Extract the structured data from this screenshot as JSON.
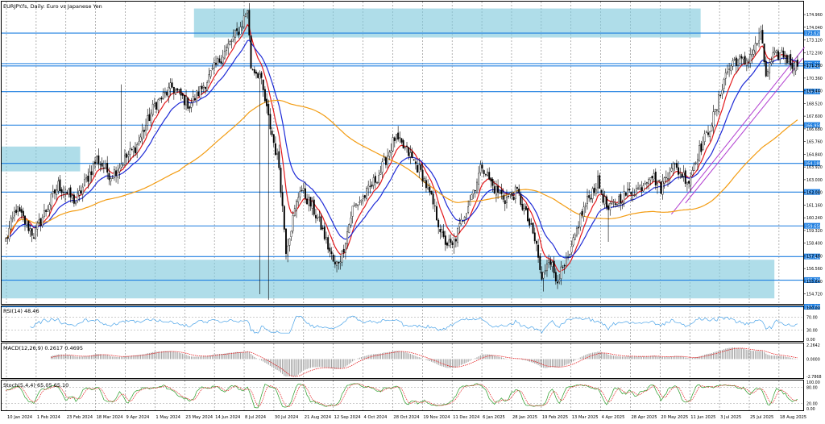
{
  "symbol_title": "EURJPY.fs, Daily: Euro vs Japanese Yen",
  "colors": {
    "bull_candle": "#000000",
    "bear_candle": "#000000",
    "ema_fast": "#e31a1c",
    "ema_mid": "#1f2bd6",
    "sma_slow": "#f39c12",
    "hline": "#1f7fe0",
    "zone": "#7ec8dc",
    "trend": "#b23fd0",
    "rsi": "#4aa3e8",
    "macd_signal": "#e31a1c",
    "stoch_k": "#2a9d2a",
    "stoch_d": "#e31a1c",
    "label_bg": "#1f7fe0",
    "grid": "#808080"
  },
  "chart_data": [
    {
      "type": "candlestick",
      "name": "main",
      "title": "EURJPY.fs, Daily: Euro vs Japanese Yen",
      "ylim": [
        154.0,
        175.9
      ],
      "y_ticks": [
        "175.880",
        "174.960",
        "174.040",
        "173.120",
        "172.200",
        "171.280",
        "170.360",
        "169.440",
        "168.520",
        "167.600",
        "166.680",
        "165.760",
        "164.840",
        "163.920",
        "163.000",
        "162.080",
        "161.160",
        "160.240",
        "159.320",
        "158.400",
        "157.480",
        "156.560",
        "155.640",
        "154.720"
      ],
      "x_ticks": [
        "10 Jan 2024",
        "1 Feb 2024",
        "23 Feb 2024",
        "18 Mar 2024",
        "9 Apr 2024",
        "1 May 2024",
        "23 May 2024",
        "14 Jun 2024",
        "8 Jul 2024",
        "30 Jul 2024",
        "21 Aug 2024",
        "12 Sep 2024",
        "4 Oct 2024",
        "28 Oct 2024",
        "19 Nov 2024",
        "11 Dec 2024",
        "6 Jan 2025",
        "28 Jan 2025",
        "19 Feb 2025",
        "13 Mar 2025",
        "4 Apr 2025",
        "28 Apr 2025",
        "20 May 2025",
        "11 Jun 2025",
        "3 Jul 2025",
        "25 Jul 2025",
        "18 Aug 2025"
      ],
      "price_keypoints": [
        [
          0,
          158.6
        ],
        [
          6,
          160.9
        ],
        [
          16,
          159.0
        ],
        [
          30,
          162.6
        ],
        [
          40,
          161.4
        ],
        [
          52,
          164.5
        ],
        [
          60,
          163.3
        ],
        [
          75,
          165.5
        ],
        [
          85,
          168.4
        ],
        [
          95,
          169.7
        ],
        [
          105,
          168.4
        ],
        [
          115,
          170.2
        ],
        [
          125,
          172.3
        ],
        [
          134,
          174.0
        ],
        [
          138,
          175.4
        ],
        [
          140,
          171.2
        ],
        [
          145,
          170.6
        ],
        [
          150,
          167.4
        ],
        [
          156,
          164.0
        ],
        [
          160,
          158.0
        ],
        [
          163,
          159.6
        ],
        [
          168,
          162.4
        ],
        [
          175,
          161.0
        ],
        [
          180,
          159.6
        ],
        [
          188,
          156.7
        ],
        [
          192,
          157.6
        ],
        [
          198,
          160.9
        ],
        [
          206,
          162.0
        ],
        [
          214,
          163.6
        ],
        [
          222,
          166.0
        ],
        [
          230,
          164.9
        ],
        [
          238,
          163.3
        ],
        [
          244,
          161.2
        ],
        [
          250,
          158.6
        ],
        [
          255,
          158.1
        ],
        [
          262,
          160.6
        ],
        [
          268,
          162.6
        ],
        [
          272,
          164.1
        ],
        [
          278,
          162.5
        ],
        [
          285,
          161.6
        ],
        [
          292,
          162.1
        ],
        [
          298,
          160.1
        ],
        [
          303,
          158.2
        ],
        [
          306,
          155.6
        ],
        [
          310,
          157.6
        ],
        [
          314,
          155.8
        ],
        [
          318,
          156.4
        ],
        [
          322,
          157.4
        ],
        [
          328,
          160.3
        ],
        [
          334,
          162.0
        ],
        [
          338,
          162.8
        ],
        [
          344,
          160.7
        ],
        [
          350,
          161.6
        ],
        [
          356,
          162.1
        ],
        [
          362,
          162.4
        ],
        [
          368,
          163.5
        ],
        [
          374,
          162.4
        ],
        [
          380,
          164.1
        ],
        [
          386,
          163.4
        ],
        [
          390,
          162.9
        ],
        [
          394,
          164.6
        ],
        [
          400,
          166.2
        ],
        [
          406,
          168.2
        ],
        [
          410,
          170.4
        ],
        [
          416,
          171.7
        ],
        [
          422,
          171.5
        ],
        [
          428,
          172.6
        ],
        [
          431,
          173.4
        ],
        [
          434,
          170.6
        ],
        [
          438,
          171.8
        ],
        [
          443,
          172.2
        ],
        [
          448,
          171.5
        ],
        [
          452,
          171.2
        ]
      ],
      "candle_count": 453,
      "series": [
        {
          "name": "EMA fast",
          "period": 9,
          "kind": "ema"
        },
        {
          "name": "EMA mid",
          "period": 21,
          "kind": "ema"
        },
        {
          "name": "SMA slow",
          "period": 100,
          "kind": "sma"
        }
      ],
      "horizontal_levels": [
        {
          "value": 173.62,
          "label": "173.620"
        },
        {
          "value": 171.41,
          "label": "171.410"
        },
        {
          "value": 171.24,
          "label": "171.240"
        },
        {
          "value": 169.38,
          "label": "169.380"
        },
        {
          "value": 166.95,
          "label": "166.950"
        },
        {
          "value": 164.18,
          "label": "164.180"
        },
        {
          "value": 162.1,
          "label": "162.100"
        },
        {
          "value": 159.65,
          "label": "159.650"
        },
        {
          "value": 157.43,
          "label": "157.430"
        },
        {
          "value": 155.72,
          "label": "155.720"
        },
        {
          "value": 153.79,
          "label": "153.790"
        }
      ],
      "zones": [
        {
          "name": "resistance-zone",
          "x_range": [
            0.24,
            0.872
          ],
          "y_range": [
            173.3,
            175.4
          ]
        },
        {
          "name": "mid-zone",
          "x_range": [
            0.0,
            0.098
          ],
          "y_range": [
            163.6,
            165.4
          ]
        },
        {
          "name": "support-zone",
          "x_range": [
            0.0,
            0.964
          ],
          "y_range": [
            154.4,
            157.2
          ]
        }
      ]
    },
    {
      "type": "line",
      "name": "RSI",
      "title": "RSI(14) 48.46",
      "ylim": [
        0,
        100
      ],
      "y_ticks": [
        "100.00",
        "70.00",
        "30.00",
        "0.00"
      ],
      "levels": [
        70,
        30
      ],
      "last_value": 48.46
    },
    {
      "type": "bar",
      "name": "MACD",
      "title": "MACD(12,26,9) 0.2617 0.4695",
      "ylim": [
        -2.79,
        2.26
      ],
      "y_ticks": [
        "2.2642",
        "0.0000",
        "-2.7868"
      ],
      "main_value": 0.2617,
      "signal_value": 0.4695
    },
    {
      "type": "line",
      "name": "Stochastic",
      "title": "Stoch(5,4,4) 65.05 65.10",
      "ylim": [
        0,
        100
      ],
      "y_ticks": [
        "100.00",
        "80.00",
        "20.00",
        "0.00"
      ],
      "levels": [
        80,
        20
      ],
      "k_value": 65.05,
      "d_value": 65.1
    }
  ]
}
